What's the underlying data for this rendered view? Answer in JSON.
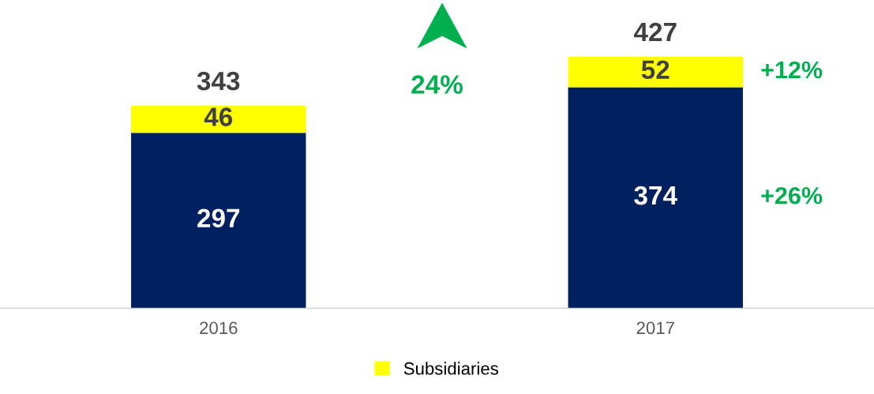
{
  "chart_data": {
    "type": "bar",
    "stacked": true,
    "categories": [
      "2016",
      "2017"
    ],
    "series": [
      {
        "color": "#002060",
        "values": [
          297,
          374
        ]
      },
      {
        "name": "Subsidiaries",
        "color": "#ffff00",
        "values": [
          46,
          52
        ]
      }
    ],
    "data_labels": true,
    "totals": [
      "343",
      "427"
    ],
    "legend": "bottom",
    "grid": false,
    "annotations": [
      "24%",
      "+12%",
      "+26%"
    ]
  }
}
